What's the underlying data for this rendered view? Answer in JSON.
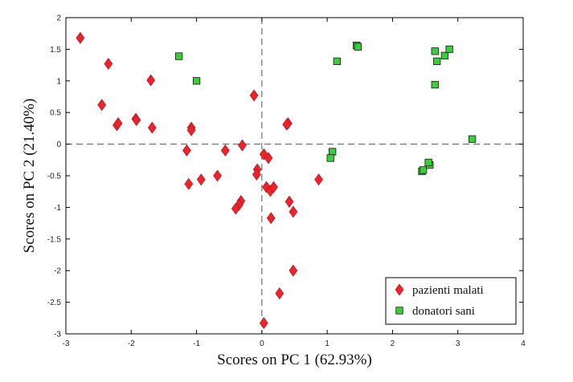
{
  "chart_data": {
    "type": "scatter",
    "xlabel": "Scores on PC 1 (62.93%)",
    "ylabel": "Scores on PC 2 (21.40%)",
    "xlim": [
      -3,
      4
    ],
    "ylim": [
      -3,
      2
    ],
    "xticks": [
      -3,
      -2,
      -1,
      0,
      1,
      2,
      3,
      4
    ],
    "yticks": [
      -3,
      -2.5,
      -2,
      -1.5,
      -1,
      -0.5,
      0,
      0.5,
      1,
      1.5,
      2
    ],
    "grid": false,
    "reference_lines": "dashed lines at x=0 and y=0",
    "legend_position": "bottom-right",
    "series": [
      {
        "name": "pazienti malati",
        "marker": "diamond",
        "color": "#e8242c",
        "points": [
          [
            -2.78,
            1.68
          ],
          [
            -2.35,
            1.27
          ],
          [
            -2.45,
            0.62
          ],
          [
            -2.22,
            0.3
          ],
          [
            -2.2,
            0.33
          ],
          [
            -1.93,
            0.4
          ],
          [
            -1.92,
            0.38
          ],
          [
            -1.7,
            1.01
          ],
          [
            -1.68,
            0.26
          ],
          [
            -1.08,
            0.26
          ],
          [
            -1.08,
            0.22
          ],
          [
            -1.15,
            -0.1
          ],
          [
            -1.12,
            -0.63
          ],
          [
            -0.93,
            -0.56
          ],
          [
            -0.68,
            -0.5
          ],
          [
            -0.56,
            -0.1
          ],
          [
            -0.3,
            -0.02
          ],
          [
            -0.32,
            -0.9
          ],
          [
            -0.35,
            -0.96
          ],
          [
            -0.4,
            -1.02
          ],
          [
            -0.12,
            0.77
          ],
          [
            -0.07,
            -0.4
          ],
          [
            -0.08,
            -0.48
          ],
          [
            0.03,
            -0.16
          ],
          [
            0.1,
            -0.22
          ],
          [
            0.07,
            -0.68
          ],
          [
            0.13,
            -0.74
          ],
          [
            0.18,
            -0.68
          ],
          [
            0.4,
            0.33
          ],
          [
            0.38,
            0.31
          ],
          [
            0.42,
            -0.91
          ],
          [
            0.48,
            -1.07
          ],
          [
            0.14,
            -1.17
          ],
          [
            0.48,
            -2.0
          ],
          [
            0.27,
            -2.36
          ],
          [
            0.03,
            -2.83
          ],
          [
            0.87,
            -0.56
          ]
        ]
      },
      {
        "name": "donatori sani",
        "marker": "square",
        "color": "#3ccc3c",
        "points": [
          [
            -1.27,
            1.39
          ],
          [
            -1.0,
            1.0
          ],
          [
            1.15,
            1.31
          ],
          [
            1.45,
            1.56
          ],
          [
            1.47,
            1.54
          ],
          [
            1.08,
            -0.12
          ],
          [
            1.05,
            -0.22
          ],
          [
            2.45,
            -0.43
          ],
          [
            2.47,
            -0.41
          ],
          [
            2.57,
            -0.33
          ],
          [
            2.55,
            -0.29
          ],
          [
            2.65,
            1.47
          ],
          [
            2.68,
            1.31
          ],
          [
            2.8,
            1.4
          ],
          [
            2.87,
            1.5
          ],
          [
            2.65,
            0.94
          ],
          [
            3.22,
            0.08
          ]
        ]
      }
    ]
  }
}
